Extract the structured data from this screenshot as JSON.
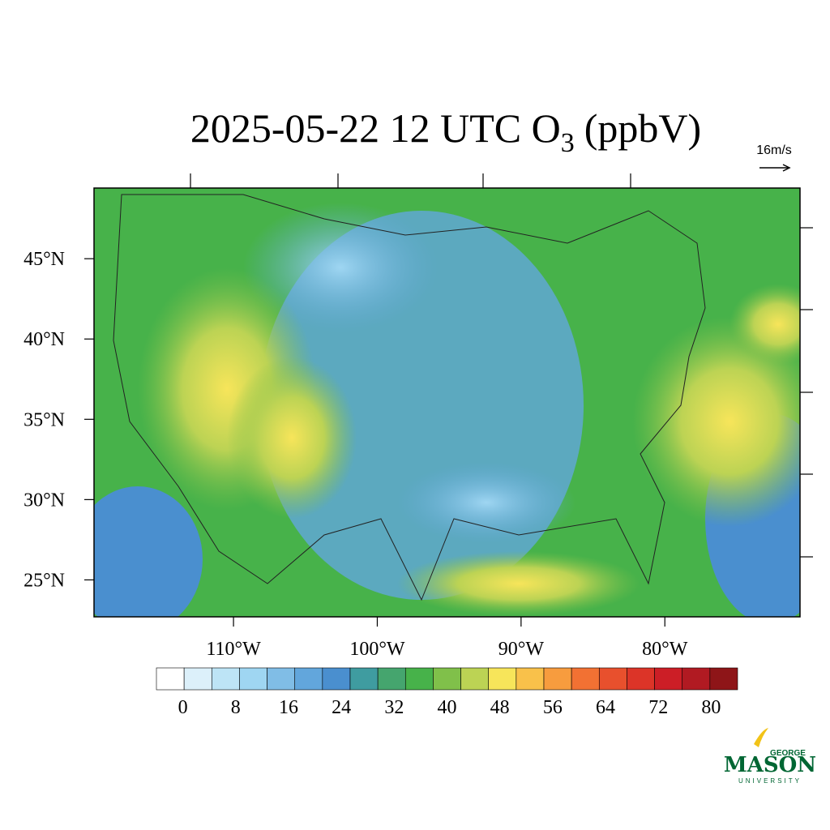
{
  "title": {
    "text": "2025-05-22 12 UTC O",
    "subscript": "3",
    "suffix": "(ppbV)"
  },
  "map": {
    "xlim": [
      -119.7,
      -70.6
    ],
    "ylim": [
      22.7,
      49.4
    ],
    "xticks": [
      {
        "value": -110,
        "label": "110°W"
      },
      {
        "value": -100,
        "label": "100°W"
      },
      {
        "value": -90,
        "label": "90°W"
      },
      {
        "value": -80,
        "label": "80°W"
      }
    ],
    "yticks": [
      {
        "value": 25,
        "label": "25°N"
      },
      {
        "value": 30,
        "label": "30°N"
      },
      {
        "value": 35,
        "label": "35°N"
      },
      {
        "value": 40,
        "label": "40°N"
      },
      {
        "value": 45,
        "label": "45°N"
      }
    ],
    "vector_reference": "16m/s"
  },
  "colorbar": {
    "clim": [
      -4,
      84
    ],
    "ticks": [
      0,
      8,
      16,
      24,
      32,
      40,
      48,
      56,
      64,
      72,
      80
    ],
    "colors": [
      "#ffffff",
      "#dcf0fa",
      "#bde4f6",
      "#9fd6f2",
      "#80bde6",
      "#62a6dc",
      "#4a8fcf",
      "#3f9ca0",
      "#45a56e",
      "#47b24a",
      "#80c04a",
      "#bcd354",
      "#f7e55a",
      "#f9c14a",
      "#f79c3e",
      "#f27133",
      "#e8502d",
      "#dc3428",
      "#cc1e26",
      "#b11a22",
      "#8e1518"
    ]
  },
  "logo": {
    "top": "GEORGE",
    "main": "MASON",
    "bottom": "UNIVERSITY"
  }
}
